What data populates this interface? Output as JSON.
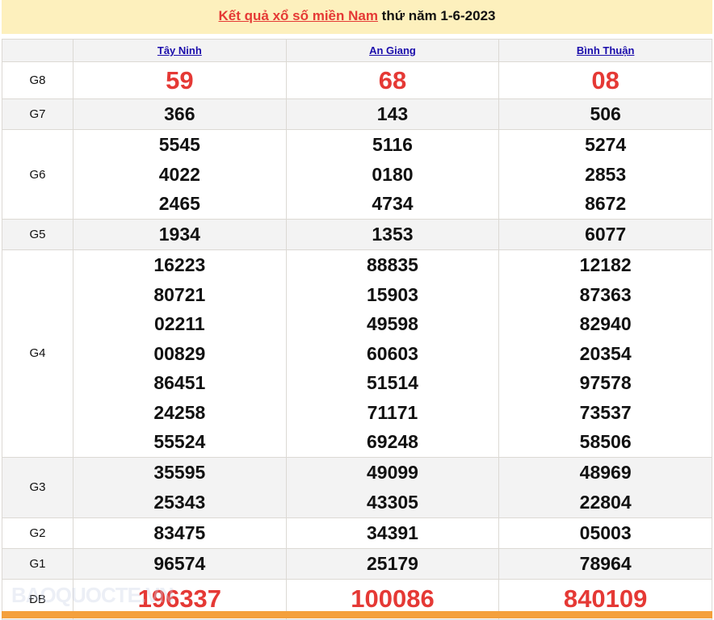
{
  "title": {
    "link": "Kết quả xổ số miền Nam",
    "rest": " thứ năm 1-6-2023"
  },
  "provinces": [
    "Tây Ninh",
    "An Giang",
    "Bình Thuận"
  ],
  "prizes": [
    {
      "label": "G8",
      "values": [
        [
          "59"
        ],
        [
          "68"
        ],
        [
          "08"
        ]
      ]
    },
    {
      "label": "G7",
      "values": [
        [
          "366"
        ],
        [
          "143"
        ],
        [
          "506"
        ]
      ]
    },
    {
      "label": "G6",
      "values": [
        [
          "5545",
          "4022",
          "2465"
        ],
        [
          "5116",
          "0180",
          "4734"
        ],
        [
          "5274",
          "2853",
          "8672"
        ]
      ]
    },
    {
      "label": "G5",
      "values": [
        [
          "1934"
        ],
        [
          "1353"
        ],
        [
          "6077"
        ]
      ]
    },
    {
      "label": "G4",
      "values": [
        [
          "16223",
          "80721",
          "02211",
          "00829",
          "86451",
          "24258",
          "55524"
        ],
        [
          "88835",
          "15903",
          "49598",
          "60603",
          "51514",
          "71171",
          "69248"
        ],
        [
          "12182",
          "87363",
          "82940",
          "20354",
          "97578",
          "73537",
          "58506"
        ]
      ]
    },
    {
      "label": "G3",
      "values": [
        [
          "35595",
          "25343"
        ],
        [
          "49099",
          "43305"
        ],
        [
          "48969",
          "22804"
        ]
      ]
    },
    {
      "label": "G2",
      "values": [
        [
          "83475"
        ],
        [
          "34391"
        ],
        [
          "05003"
        ]
      ]
    },
    {
      "label": "G1",
      "values": [
        [
          "96574"
        ],
        [
          "25179"
        ],
        [
          "78964"
        ]
      ]
    },
    {
      "label": "ĐB",
      "values": [
        [
          "196337"
        ],
        [
          "100086"
        ],
        [
          "840109"
        ]
      ]
    }
  ],
  "watermark": "BAOQUOCTE.VN",
  "colors": {
    "highlight": "#e53935",
    "link": "#1a0dab",
    "title_bg": "#fdf0bd",
    "footer_bar": "#f4a03c"
  }
}
